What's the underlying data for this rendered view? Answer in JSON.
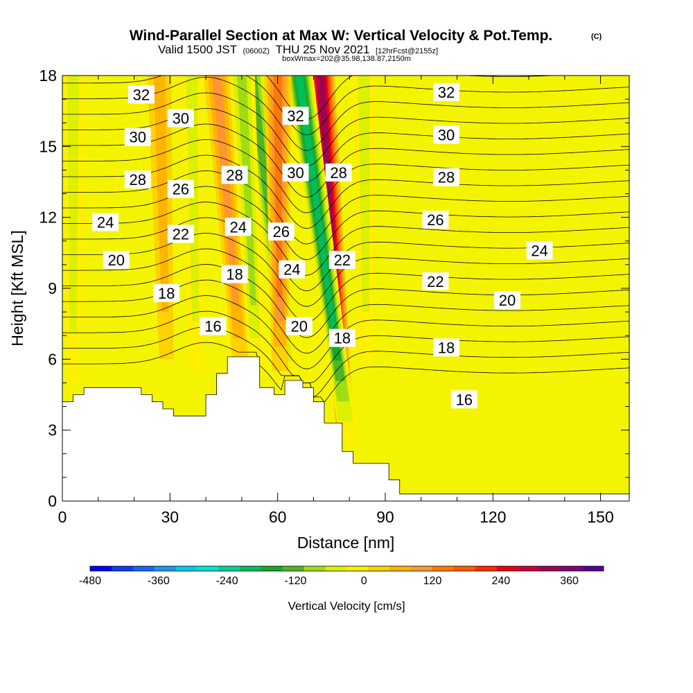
{
  "header": {
    "title": "Wind-Parallel Section at Max W: Vertical Velocity & Pot.Temp.",
    "copyright": "(C)",
    "subtitle_a": "Valid 1500 JST",
    "subtitle_b": "(0600Z)",
    "subtitle_c": "THU 25 Nov 2021",
    "subtitle_d": "[12hrFcst@2155z]",
    "subtitle2": "boxWmax=202@35.98,138.87,2150m"
  },
  "colors": {
    "background_field": "#f4f400",
    "terrain_fill": "#ffffff",
    "contour_line": "#000000",
    "colorbar": [
      "#0000f0",
      "#0a3cf0",
      "#1466f0",
      "#1c96f0",
      "#00c8f0",
      "#00e6d2",
      "#00d296",
      "#00be5a",
      "#14aa28",
      "#50b428",
      "#a0dc14",
      "#dcf000",
      "#fff000",
      "#ffd200",
      "#ffb400",
      "#ff9632",
      "#ff7800",
      "#ff5a00",
      "#ff2800",
      "#e60014",
      "#c80032",
      "#a00050",
      "#800078",
      "#500096"
    ]
  },
  "chart_data": {
    "type": "heatmap",
    "xlabel": "Distance [nm]",
    "ylabel": "Height [Kft MSL]",
    "xlim": [
      0,
      158
    ],
    "ylim": [
      0,
      18
    ],
    "xticks": [
      0,
      30,
      60,
      90,
      120,
      150
    ],
    "yticks": [
      0,
      3,
      6,
      9,
      12,
      15,
      18
    ],
    "colorbar": {
      "label": "Vertical Velocity [cm/s]",
      "min": -480,
      "max": 420,
      "step": 37.5,
      "tick_values": [
        -480,
        -360,
        -240,
        -120,
        0,
        120,
        240,
        360
      ]
    },
    "terrain": [
      [
        0,
        4.2
      ],
      [
        3,
        4.2
      ],
      [
        3,
        4.5
      ],
      [
        6,
        4.5
      ],
      [
        6,
        4.8
      ],
      [
        22,
        4.8
      ],
      [
        22,
        4.5
      ],
      [
        25,
        4.5
      ],
      [
        25,
        4.2
      ],
      [
        28,
        4.2
      ],
      [
        28,
        3.9
      ],
      [
        31,
        3.9
      ],
      [
        31,
        3.6
      ],
      [
        40,
        3.6
      ],
      [
        40,
        4.5
      ],
      [
        43,
        4.5
      ],
      [
        43,
        5.4
      ],
      [
        46,
        5.4
      ],
      [
        46,
        6.1
      ],
      [
        55,
        6.1
      ],
      [
        55,
        4.8
      ],
      [
        59,
        4.8
      ],
      [
        59,
        4.5
      ],
      [
        62,
        4.5
      ],
      [
        62,
        5.1
      ],
      [
        67,
        5.1
      ],
      [
        67,
        4.8
      ],
      [
        70,
        4.8
      ],
      [
        70,
        4.2
      ],
      [
        73,
        4.2
      ],
      [
        73,
        3.3
      ],
      [
        78,
        3.3
      ],
      [
        78,
        2.1
      ],
      [
        81,
        2.1
      ],
      [
        81,
        1.6
      ],
      [
        91,
        1.6
      ],
      [
        91,
        0.9
      ],
      [
        94,
        0.9
      ],
      [
        94,
        0.3
      ],
      [
        158,
        0.3
      ]
    ],
    "vertical_velocity_features": [
      {
        "name": "updraft_main",
        "x_at_zmax": 72,
        "x_at_zmin": 80,
        "z_range": [
          2.5,
          18
        ],
        "peak": 330
      },
      {
        "name": "downdraft_a",
        "x_at_zmax": 53,
        "x_at_zmin": 67,
        "z_range": [
          4.8,
          18
        ],
        "peak": -150
      },
      {
        "name": "downdraft_b",
        "x_at_zmax": 66,
        "x_at_zmin": 82,
        "z_range": [
          2.5,
          18
        ],
        "peak": -210
      },
      {
        "name": "updraft_b",
        "x_at_zmax": 60,
        "x_at_zmin": 61,
        "z_range": [
          5.5,
          18
        ],
        "peak": 120
      },
      {
        "name": "updraft_c",
        "x_at_zmax": 43,
        "x_at_zmin": 53,
        "z_range": [
          5.5,
          18
        ],
        "peak": 110
      },
      {
        "name": "downdraft_c",
        "x_at_zmax": 50,
        "x_at_zmin": 56,
        "z_range": [
          5.5,
          18
        ],
        "peak": -90
      },
      {
        "name": "downdraft_d",
        "x_at_zmax": 36,
        "x_at_zmin": 38,
        "z_range": [
          5.5,
          18
        ],
        "peak": -60
      },
      {
        "name": "downdraft_e",
        "x_at_zmax": 84,
        "x_at_zmin": 85,
        "z_range": [
          6,
          18
        ],
        "peak": -50
      },
      {
        "name": "downdraft_f",
        "x_at_zmax": 3,
        "x_at_zmin": 3,
        "z_range": [
          5,
          18
        ],
        "peak": -40
      },
      {
        "name": "updraft_d",
        "x_at_zmax": 27,
        "x_at_zmin": 30,
        "z_range": [
          6,
          18
        ],
        "peak": 60
      }
    ],
    "potential_temperature_contours": {
      "levels": [
        15,
        16,
        17,
        18,
        19,
        20,
        21,
        22,
        23,
        24,
        25,
        26,
        27,
        28,
        29,
        30,
        31,
        32,
        33,
        34
      ],
      "labels": [
        {
          "text": "32",
          "x": 22,
          "z": 17.2
        },
        {
          "text": "30",
          "x": 33,
          "z": 16.2
        },
        {
          "text": "30",
          "x": 21,
          "z": 15.4
        },
        {
          "text": "28",
          "x": 21,
          "z": 13.6
        },
        {
          "text": "26",
          "x": 33,
          "z": 13.2
        },
        {
          "text": "24",
          "x": 12,
          "z": 11.8
        },
        {
          "text": "22",
          "x": 33,
          "z": 11.3
        },
        {
          "text": "20",
          "x": 15,
          "z": 10.2
        },
        {
          "text": "18",
          "x": 29,
          "z": 8.8
        },
        {
          "text": "16",
          "x": 42,
          "z": 7.4
        },
        {
          "text": "28",
          "x": 48,
          "z": 13.8
        },
        {
          "text": "24",
          "x": 49,
          "z": 11.6
        },
        {
          "text": "18",
          "x": 48,
          "z": 9.6
        },
        {
          "text": "26",
          "x": 61,
          "z": 11.4
        },
        {
          "text": "32",
          "x": 65,
          "z": 16.3
        },
        {
          "text": "30",
          "x": 65,
          "z": 13.9
        },
        {
          "text": "24",
          "x": 64,
          "z": 9.8
        },
        {
          "text": "20",
          "x": 66,
          "z": 7.4
        },
        {
          "text": "28",
          "x": 77,
          "z": 13.9
        },
        {
          "text": "22",
          "x": 78,
          "z": 10.2
        },
        {
          "text": "18",
          "x": 78,
          "z": 6.9
        },
        {
          "text": "32",
          "x": 107,
          "z": 17.3
        },
        {
          "text": "30",
          "x": 107,
          "z": 15.5
        },
        {
          "text": "28",
          "x": 107,
          "z": 13.7
        },
        {
          "text": "26",
          "x": 104,
          "z": 11.9
        },
        {
          "text": "24",
          "x": 133,
          "z": 10.6
        },
        {
          "text": "22",
          "x": 104,
          "z": 9.3
        },
        {
          "text": "20",
          "x": 124,
          "z": 8.5
        },
        {
          "text": "18",
          "x": 107,
          "z": 6.5
        },
        {
          "text": "16",
          "x": 112,
          "z": 4.3
        }
      ]
    }
  }
}
